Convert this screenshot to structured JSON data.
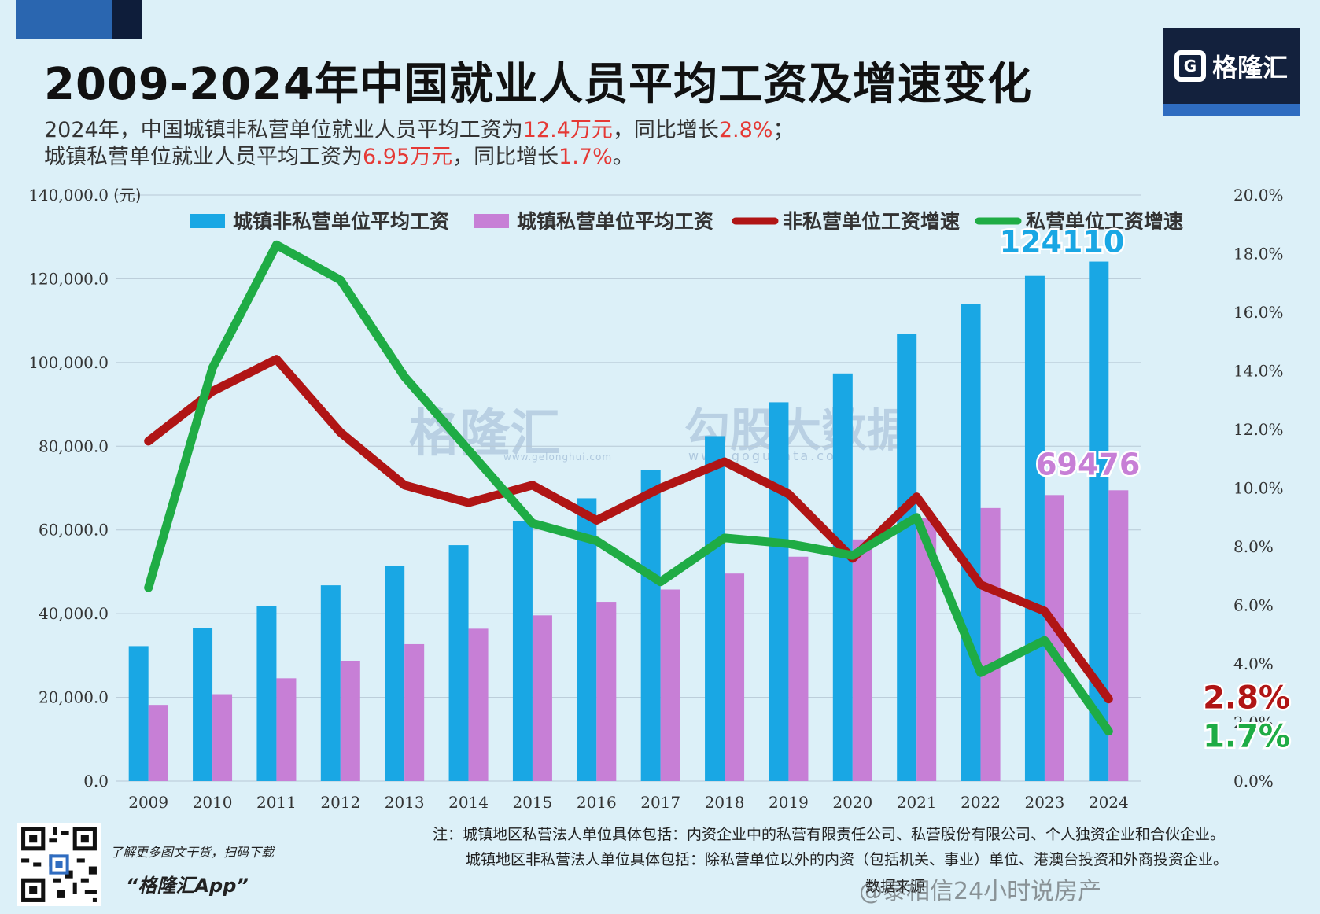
{
  "title": "2009-2024年中国就业人员平均工资及增速变化",
  "subtitle": {
    "line1": [
      "2024年，中国城镇非私营单位就业人员平均工资为",
      "12.4万元",
      "，同比增长",
      "2.8%",
      "；"
    ],
    "line2": [
      "城镇私营单位就业人员平均工资为",
      "6.95万元",
      "，同比增长",
      "1.7%",
      "。"
    ]
  },
  "logo": {
    "icon": "G",
    "text": "格隆汇"
  },
  "watermark": {
    "brand1": "格隆汇",
    "url1": "www.gelonghui.com",
    "brand2": "勾股大数据",
    "url2": "www.gogudata.com"
  },
  "chart_data": {
    "type": "bar",
    "categories": [
      "2009",
      "2010",
      "2011",
      "2012",
      "2013",
      "2014",
      "2015",
      "2016",
      "2017",
      "2018",
      "2019",
      "2020",
      "2021",
      "2022",
      "2023",
      "2024"
    ],
    "series": [
      {
        "name": "城镇非私营单位平均工资",
        "kind": "bar",
        "axis": "left",
        "color": "#19a7e4",
        "values": [
          32244,
          36539,
          41799,
          46769,
          51483,
          56360,
          62029,
          67569,
          74318,
          82413,
          90501,
          97379,
          106837,
          114029,
          120698,
          124110
        ]
      },
      {
        "name": "城镇私营单位平均工资",
        "kind": "bar",
        "axis": "left",
        "color": "#c77fd6",
        "values": [
          18199,
          20759,
          24556,
          28752,
          32706,
          36390,
          39589,
          42833,
          45761,
          49575,
          53604,
          57727,
          62884,
          65237,
          68340,
          69476
        ]
      },
      {
        "name": "非私营单位工资增速",
        "kind": "line",
        "axis": "right",
        "color": "#b01515",
        "values": [
          11.6,
          13.3,
          14.4,
          11.9,
          10.1,
          9.5,
          10.1,
          8.9,
          10.0,
          10.9,
          9.8,
          7.6,
          9.7,
          6.7,
          5.8,
          2.8
        ]
      },
      {
        "name": "私营单位工资增速",
        "kind": "line",
        "axis": "right",
        "color": "#1fac45",
        "values": [
          6.6,
          14.1,
          18.3,
          17.1,
          13.8,
          11.3,
          8.8,
          8.2,
          6.8,
          8.3,
          8.1,
          7.7,
          9.0,
          3.7,
          4.8,
          1.7
        ]
      }
    ],
    "y_left": {
      "min": 0,
      "max": 140000,
      "ticks": [
        "0.0",
        "20,000.0",
        "40,000.0",
        "60,000.0",
        "80,000.0",
        "100,000.0",
        "120,000.0",
        "140,000.0"
      ],
      "unit": "(元)"
    },
    "y_right": {
      "min": 0,
      "max": 20,
      "ticks": [
        "0.0%",
        "2.0%",
        "4.0%",
        "6.0%",
        "8.0%",
        "10.0%",
        "12.0%",
        "14.0%",
        "16.0%",
        "18.0%",
        "20.0%"
      ]
    },
    "annotations": [
      {
        "text": "124110",
        "color": "#19a7e4"
      },
      {
        "text": "69476",
        "color": "#c77fd6"
      },
      {
        "text": "2.8%",
        "color": "#b01515"
      },
      {
        "text": "1.7%",
        "color": "#1fac45"
      }
    ],
    "legend_position": "top",
    "grid": true
  },
  "footer": {
    "note1": "注：城镇地区私营法人单位具体包括：内资企业中的私营有限责任公司、私营股份有限公司、个人独资企业和合伙企业。",
    "note2": "城镇地区非私营法人单位具体包括：除私营单位以外的内资（包括机关、事业）单位、港澳台投资和外商投资企业。",
    "source": "数据来源",
    "qr_caption": "了解更多图文干货，扫码下载",
    "app_name": "“格隆汇App”",
    "weibo_watermark": "@泰相信24小时说房产"
  }
}
